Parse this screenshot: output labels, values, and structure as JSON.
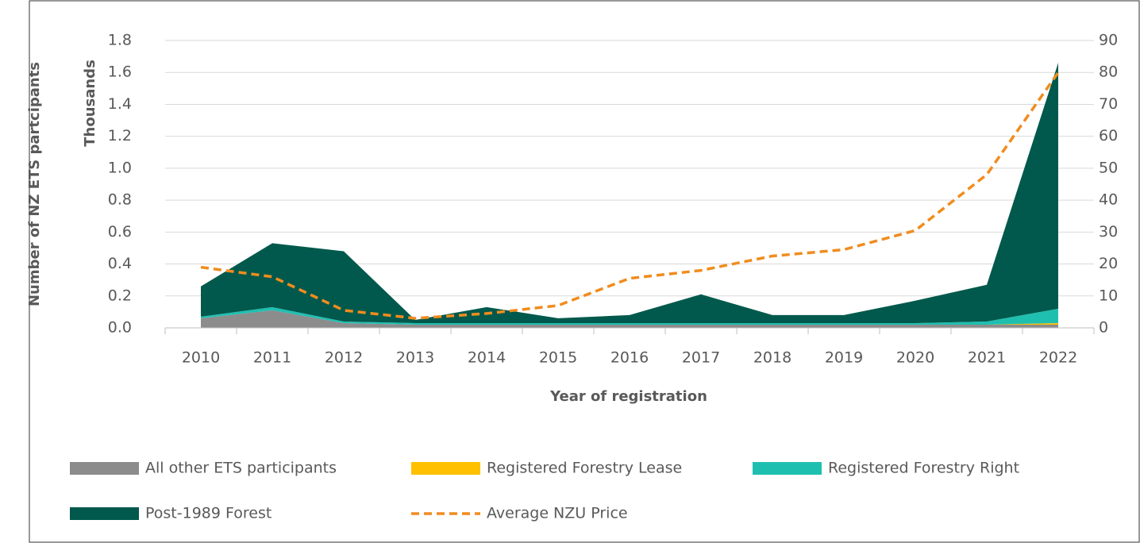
{
  "chart_data": {
    "type": "stacked_area_line",
    "ylabel": "Number of NZ ETS partcipants",
    "ylabel2": "Thousands",
    "xlabel": "Year of registration",
    "categories": [
      "2010",
      "2011",
      "2012",
      "2013",
      "2014",
      "2015",
      "2016",
      "2017",
      "2018",
      "2019",
      "2020",
      "2021",
      "2022"
    ],
    "series": [
      {
        "name": "All other ETS participants",
        "color": "#8c8c8c",
        "values": [
          0.06,
          0.11,
          0.03,
          0.02,
          0.02,
          0.02,
          0.02,
          0.02,
          0.02,
          0.02,
          0.02,
          0.02,
          0.02
        ]
      },
      {
        "name": "Registered Forestry Lease",
        "color": "#ffc000",
        "values": [
          0,
          0,
          0,
          0,
          0,
          0,
          0,
          0,
          0,
          0,
          0,
          0,
          0.01
        ]
      },
      {
        "name": "Registered Forestry Right",
        "color": "#1fbfb0",
        "values": [
          0.01,
          0.02,
          0.01,
          0.01,
          0.01,
          0.01,
          0.01,
          0.01,
          0.01,
          0.01,
          0.01,
          0.02,
          0.09
        ]
      },
      {
        "name": "Post-1989 Forest",
        "color": "#00594c",
        "values": [
          0.19,
          0.4,
          0.44,
          0.02,
          0.1,
          0.03,
          0.05,
          0.18,
          0.05,
          0.05,
          0.14,
          0.23,
          1.54
        ]
      },
      {
        "name": "Average NZU Price",
        "color": "#f08c1e",
        "axis": "y2",
        "dashed": true,
        "values": [
          19,
          16,
          5.5,
          3,
          4.5,
          7,
          15.5,
          18,
          22.5,
          24.5,
          30.5,
          48,
          80
        ]
      }
    ],
    "ylim": [
      0,
      1.8
    ],
    "yticks": [
      {
        "value": 0,
        "label": "0.0"
      },
      0.2,
      0.4,
      0.6,
      0.8,
      {
        "value": 1,
        "label": "1.0"
      },
      1.2,
      1.4,
      1.6,
      1.8
    ],
    "y2lim": [
      0,
      90
    ],
    "y2ticks": [
      0,
      10,
      20,
      30,
      40,
      50,
      60,
      70,
      80,
      90
    ],
    "grid": true,
    "legend": "bottom"
  }
}
